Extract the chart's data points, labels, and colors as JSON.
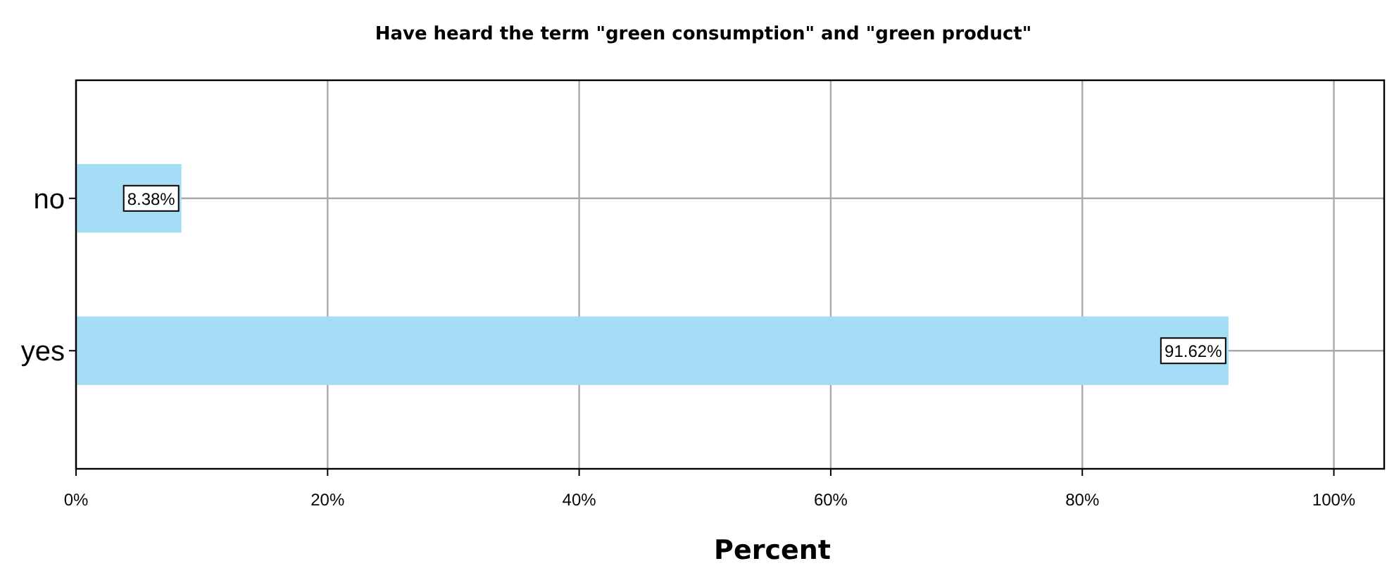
{
  "chart_data": {
    "type": "bar",
    "orientation": "horizontal",
    "title": "Have heard the term \"green consumption\" and \"green product\"",
    "xlabel": "Percent",
    "categories": [
      "no",
      "yes"
    ],
    "values": [
      8.38,
      91.62
    ],
    "value_labels": [
      "8.38%",
      "91.62%"
    ],
    "color": "#a6ddf6",
    "xlim": [
      0,
      104
    ],
    "xticks": [
      {
        "value": 0,
        "label": "0%"
      },
      {
        "value": 20,
        "label": "20%"
      },
      {
        "value": 40,
        "label": "40%"
      },
      {
        "value": 60,
        "label": "60%"
      },
      {
        "value": 80,
        "label": "80%"
      },
      {
        "value": 100,
        "label": "100%"
      }
    ],
    "grid": true
  }
}
